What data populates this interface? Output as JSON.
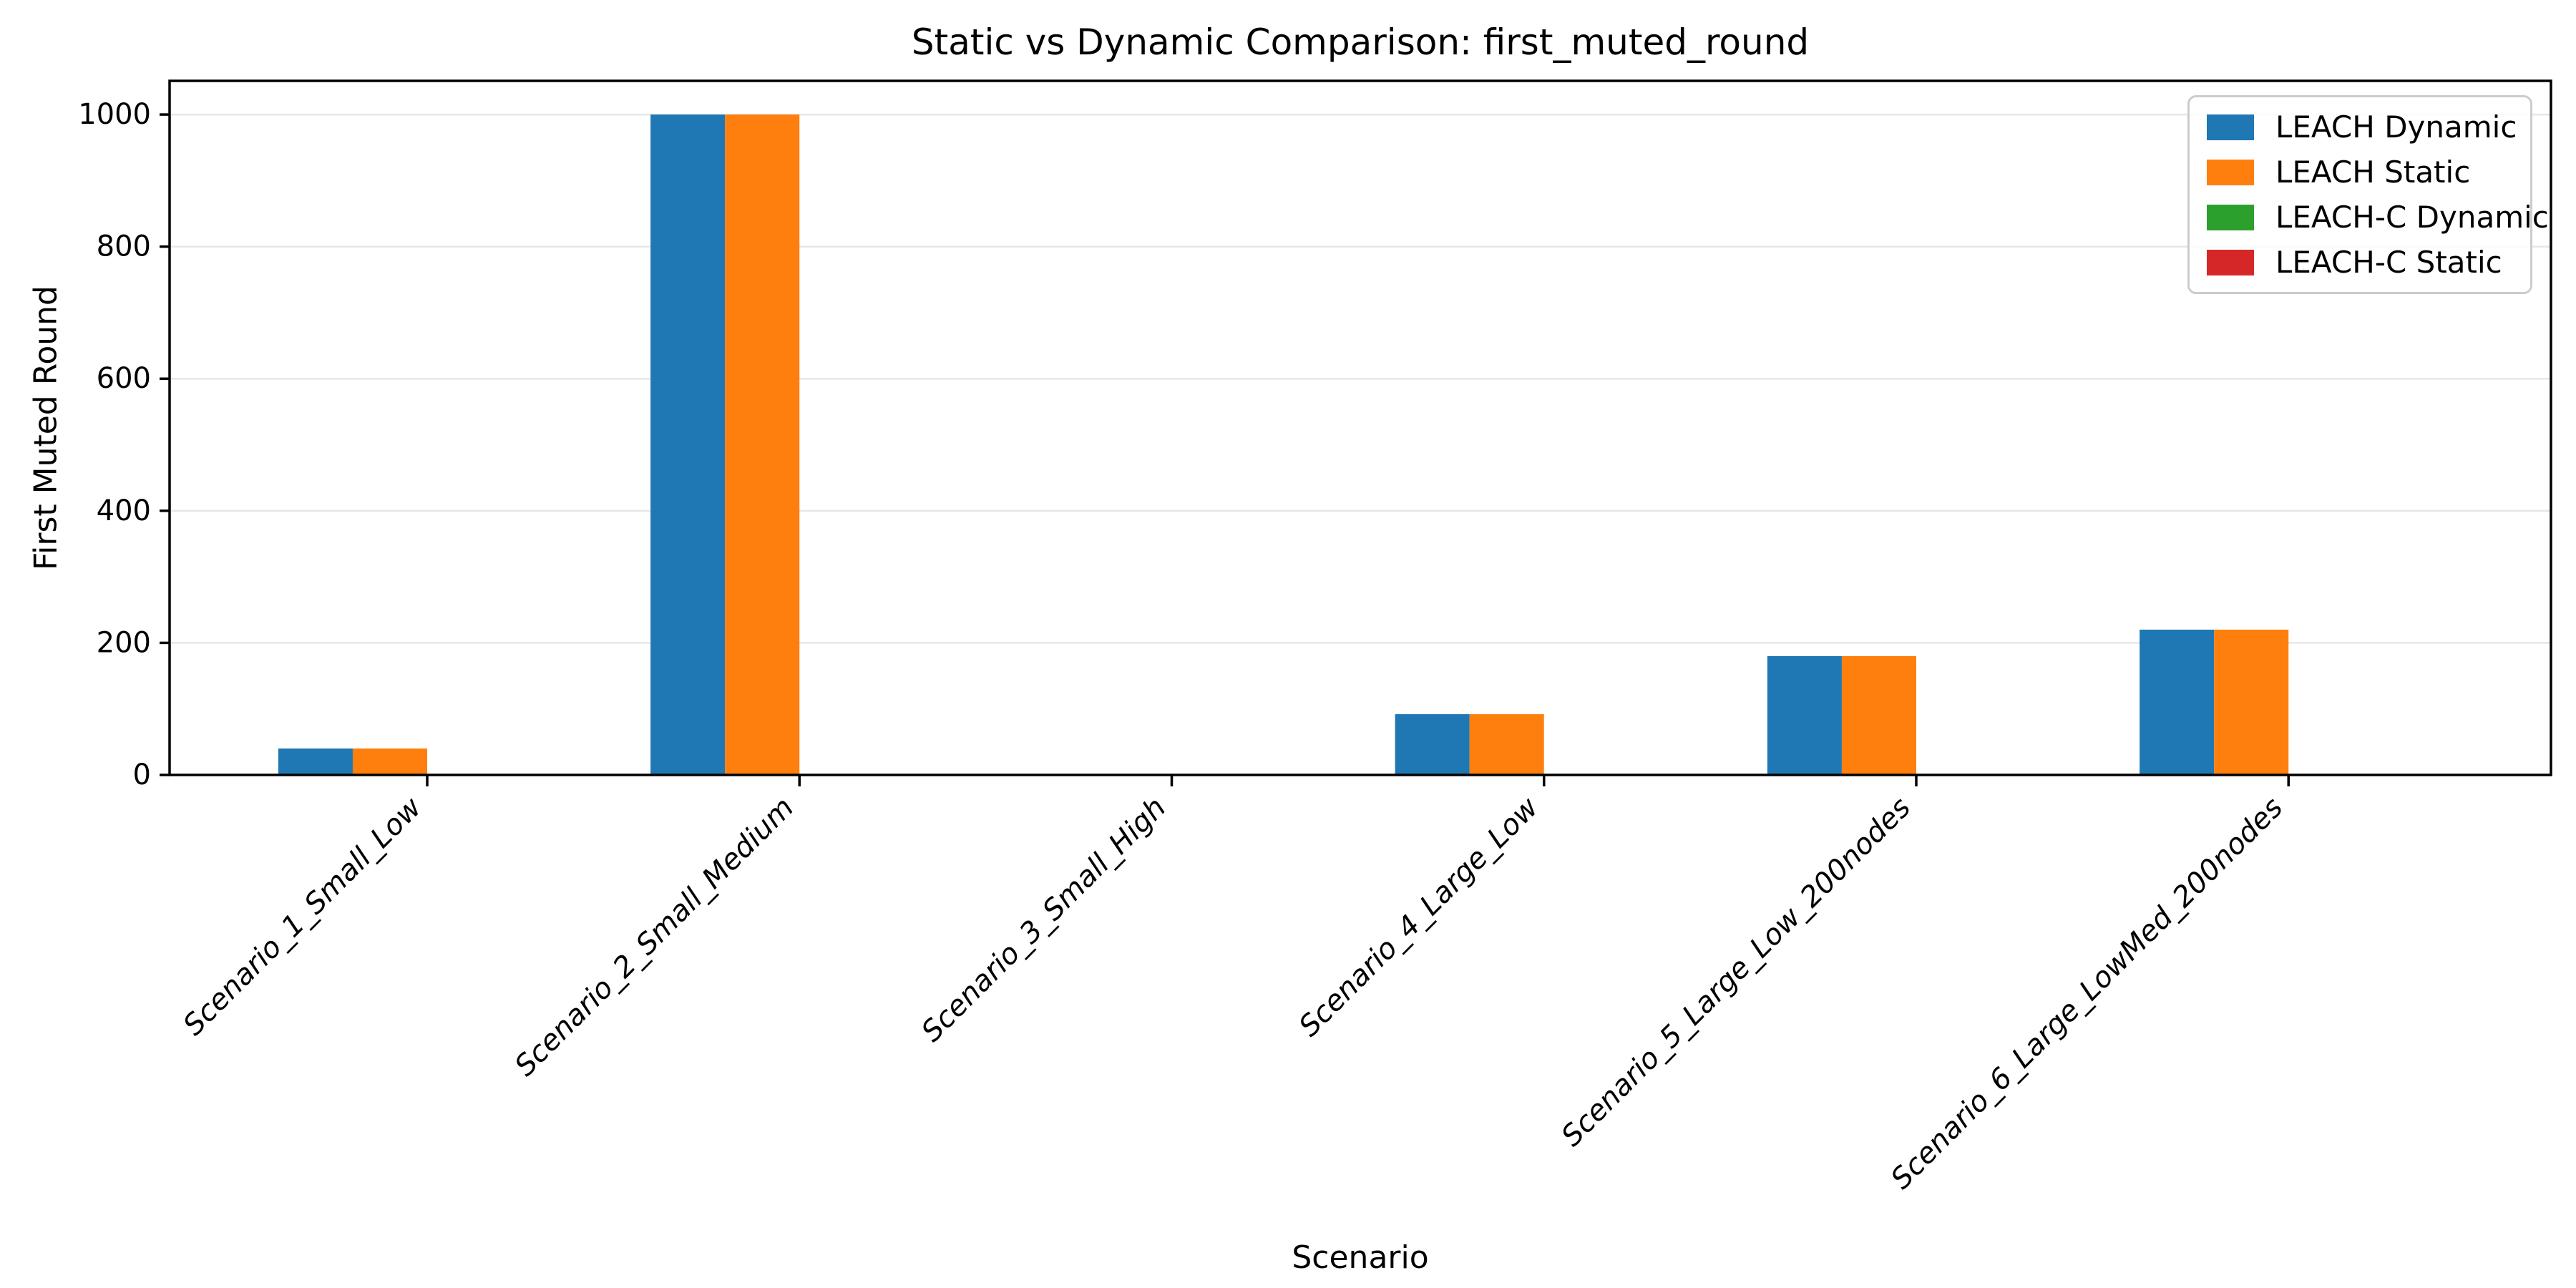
{
  "chart_data": {
    "type": "bar",
    "title": "Static vs Dynamic Comparison: first_muted_round",
    "xlabel": "Scenario",
    "ylabel": "First Muted Round",
    "categories": [
      "Scenario_1_Small_Low",
      "Scenario_2_Small_Medium",
      "Scenario_3_Small_High",
      "Scenario_4_Large_Low",
      "Scenario_5_Large_Low_200nodes",
      "Scenario_6_Large_LowMed_200nodes"
    ],
    "series": [
      {
        "name": "LEACH Dynamic",
        "color": "#1f77b4",
        "values": [
          40,
          1000,
          0,
          92,
          180,
          220
        ]
      },
      {
        "name": "LEACH Static",
        "color": "#ff7f0e",
        "values": [
          40,
          1000,
          0,
          92,
          180,
          220
        ]
      },
      {
        "name": "LEACH-C Dynamic",
        "color": "#2ca02c",
        "values": [
          0,
          0,
          0,
          0,
          0,
          0
        ]
      },
      {
        "name": "LEACH-C Static",
        "color": "#d62728",
        "values": [
          0,
          0,
          0,
          0,
          0,
          0
        ]
      }
    ],
    "yticks": [
      0,
      200,
      400,
      600,
      800,
      1000
    ],
    "ylim": [
      0,
      1051
    ],
    "xlim": [
      -0.692,
      5.705
    ],
    "bar_width": 0.2,
    "grid": "horizontal",
    "grid_color": "#e6e6e6",
    "axis_color": "#000000",
    "legend_position": "upper right",
    "tick_label_style": "italic-rotated-45"
  }
}
